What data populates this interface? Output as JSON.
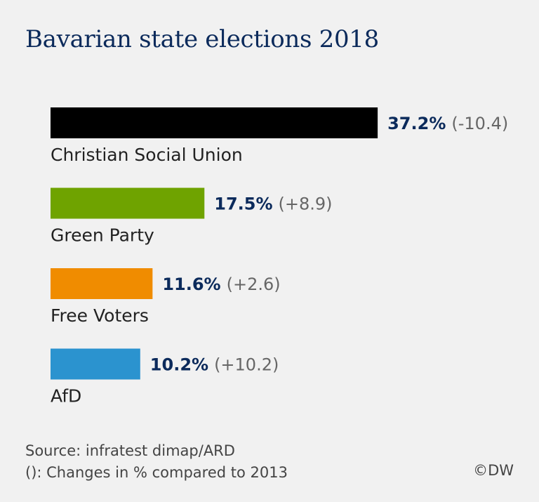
{
  "title": "Bavarian state elections 2018",
  "chart_data": {
    "type": "bar",
    "orientation": "horizontal",
    "categories": [
      "Christian Social Union",
      "Green Party",
      "Free Voters",
      "AfD"
    ],
    "values": [
      37.2,
      17.5,
      11.6,
      10.2
    ],
    "value_labels": [
      "37.2%",
      "17.5%",
      "11.6%",
      "10.2%"
    ],
    "changes": [
      -10.4,
      8.9,
      2.6,
      10.2
    ],
    "change_labels": [
      "(-10.4)",
      "(+8.9)",
      "(+2.6)",
      "(+10.2)"
    ],
    "colors": [
      "#000000",
      "#6fa300",
      "#f08c00",
      "#2b93cf"
    ],
    "unit": "%",
    "grid": false,
    "axes_shown": false
  },
  "footer": {
    "source": "Source: infratest dimap/ARD",
    "note": "(): Changes in % compared to 2013",
    "copyright": "©DW"
  }
}
